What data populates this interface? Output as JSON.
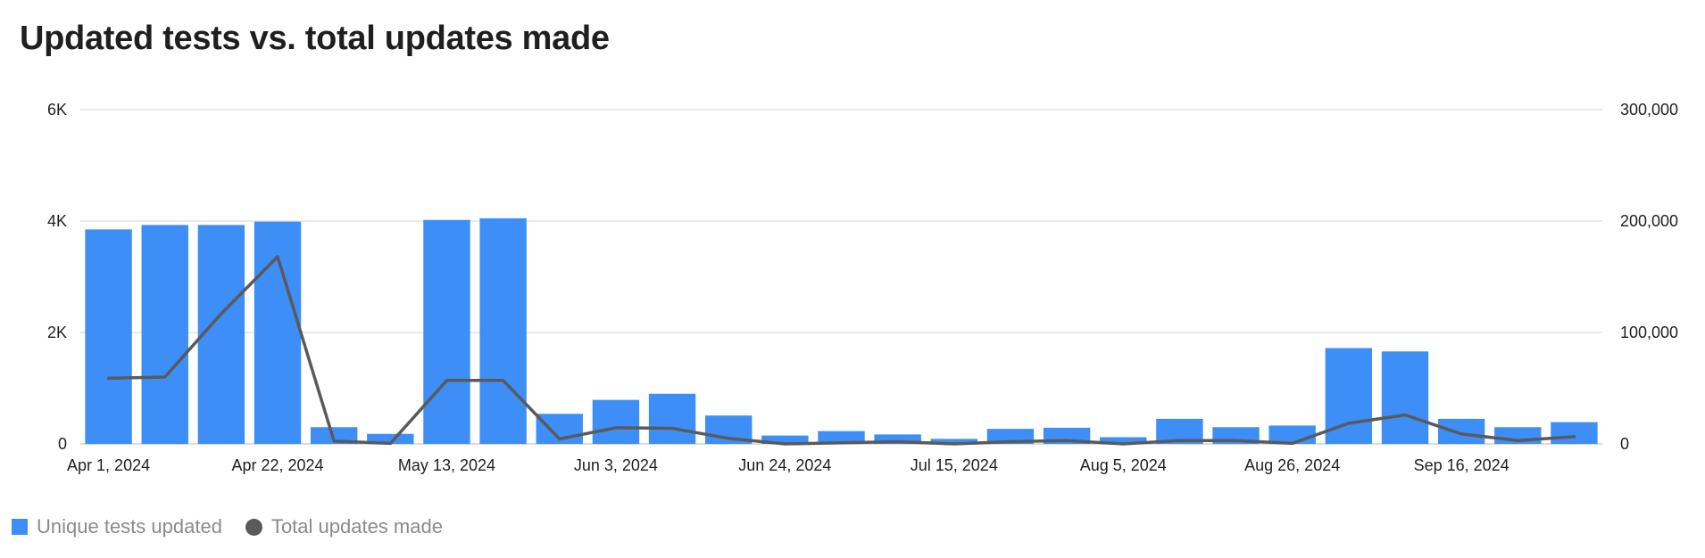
{
  "chart_data": {
    "type": "bar",
    "title": "Updated tests vs. total updates made",
    "x_tick_labels": [
      "Apr 1, 2024",
      "Apr 22, 2024",
      "May 13, 2024",
      "Jun 3, 2024",
      "Jun 24, 2024",
      "Jul 15, 2024",
      "Aug 5, 2024",
      "Aug 26, 2024",
      "Sep 16, 2024"
    ],
    "categories": [
      "Apr 1, 2024",
      "Apr 8, 2024",
      "Apr 15, 2024",
      "Apr 22, 2024",
      "Apr 29, 2024",
      "May 6, 2024",
      "May 13, 2024",
      "May 20, 2024",
      "May 27, 2024",
      "Jun 3, 2024",
      "Jun 10, 2024",
      "Jun 17, 2024",
      "Jun 24, 2024",
      "Jul 1, 2024",
      "Jul 8, 2024",
      "Jul 15, 2024",
      "Jul 22, 2024",
      "Jul 29, 2024",
      "Aug 5, 2024",
      "Aug 12, 2024",
      "Aug 19, 2024",
      "Aug 26, 2024",
      "Sep 2, 2024",
      "Sep 9, 2024",
      "Sep 16, 2024",
      "Sep 23, 2024",
      "Sep 30, 2024"
    ],
    "y_left": {
      "ylim": [
        0,
        6000
      ],
      "ticks": [
        0,
        2000,
        4000,
        6000
      ],
      "tick_labels": [
        "0",
        "2K",
        "4K",
        "6K"
      ]
    },
    "y_right": {
      "ylim": [
        0,
        300000
      ],
      "ticks": [
        0,
        100000,
        200000,
        300000
      ],
      "tick_labels": [
        "0",
        "100,000",
        "200,000",
        "300,000"
      ]
    },
    "grid": true,
    "legend_placement": "bottom-left",
    "series": [
      {
        "name": "Unique tests updated",
        "type": "bar",
        "axis": "left",
        "color": "#3d8ff7",
        "values": [
          3850,
          3930,
          3930,
          3990,
          300,
          180,
          4020,
          4050,
          540,
          790,
          900,
          510,
          150,
          230,
          170,
          90,
          270,
          290,
          120,
          450,
          300,
          330,
          1720,
          1660,
          450,
          300,
          390
        ]
      },
      {
        "name": "Total updates made",
        "type": "line",
        "axis": "right",
        "color": "#5a5a5a",
        "values": [
          59000,
          60000,
          117000,
          168000,
          2500,
          500,
          57000,
          57000,
          4500,
          14500,
          14000,
          5000,
          0,
          1000,
          2000,
          0,
          2000,
          3000,
          0,
          3000,
          3000,
          500,
          18500,
          26000,
          9000,
          3000,
          6500
        ]
      }
    ]
  }
}
